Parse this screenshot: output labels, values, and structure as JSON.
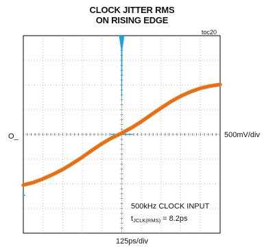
{
  "chart_data": {
    "type": "line",
    "title_line1": "CLOCK JITTER RMS",
    "title_line2": "ON RISING EDGE",
    "tag": "toc20",
    "ground_marker": "O_",
    "y_scale": "500mV/div",
    "x_scale": "125ps/div",
    "annotation_line1": "500kHz CLOCK INPUT",
    "annotation_t": "t",
    "annotation_subscript": "JCLK(RMS)",
    "annotation_value": " = 8.2ps",
    "grid": true,
    "x_divisions": 10,
    "y_divisions": 8,
    "x_range_div": [
      -5,
      5
    ],
    "y_range_div": [
      -4,
      4
    ],
    "trace_color": "#e8771e",
    "histogram_color": "#1aa3e0",
    "series": [
      {
        "x": [
          -5,
          -4.5,
          -4,
          -3.5,
          -3,
          -2.5,
          -2,
          -1.5,
          -1,
          -0.5,
          0,
          0.5,
          1,
          1.5,
          2,
          2.5,
          3,
          3.5,
          4,
          4.5,
          5
        ],
        "values": [
          -2.05,
          -1.95,
          -1.8,
          -1.62,
          -1.42,
          -1.18,
          -0.92,
          -0.64,
          -0.37,
          -0.14,
          0.05,
          0.27,
          0.52,
          0.8,
          1.07,
          1.33,
          1.55,
          1.73,
          1.87,
          1.96,
          2.02
        ]
      }
    ],
    "histogram": {
      "x_center": 0,
      "peak_top_div": 4,
      "peak_bottom_div": 1.08,
      "baseline_div": 0,
      "baseline_half_width_div": 0.55
    }
  }
}
